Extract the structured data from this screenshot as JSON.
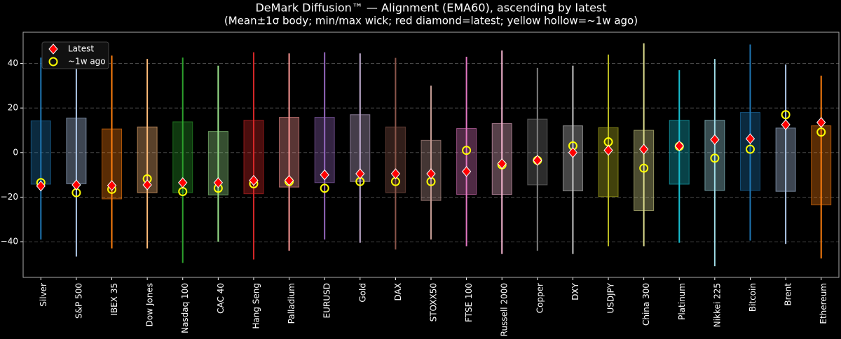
{
  "chart_data": {
    "type": "range",
    "title": "DeMark Diffusion™ — Alignment (EMA60), ascending by latest",
    "subtitle": "(Mean±1σ body; min/max wick; red diamond=latest; yellow hollow=~1w ago)",
    "categories": [
      "Silver",
      "S&P 500",
      "IBEX 35",
      "Dow Jones",
      "Nasdaq 100",
      "CAC 40",
      "Hang Seng",
      "Palladium",
      "EURUSD",
      "Gold",
      "DAX",
      "STOXX50",
      "FTSE 100",
      "Russell 2000",
      "Copper",
      "DXY",
      "USDJPY",
      "China 300",
      "Platinum",
      "Nikkei 225",
      "Bitcoin",
      "Brent",
      "Ethereum"
    ],
    "colors": [
      "#1f77b4",
      "#aec7e8",
      "#ff7f0e",
      "#ffbb78",
      "#2ca02c",
      "#98df8a",
      "#d62728",
      "#ff9896",
      "#9467bd",
      "#c5b0d5",
      "#8c564b",
      "#c49c94",
      "#e377c2",
      "#f7b6d2",
      "#7f7f7f",
      "#c7c7c7",
      "#bcbd22",
      "#dbdb8d",
      "#17becf",
      "#9edae5",
      "#1f77b4",
      "#aec7e8",
      "#ff7f0e"
    ],
    "body_high": [
      14.2,
      15.5,
      10.6,
      11.5,
      13.8,
      9.5,
      14.5,
      15.8,
      15.8,
      17,
      11.5,
      5.5,
      10.8,
      13,
      15,
      12,
      11.2,
      10,
      14.5,
      14.5,
      18,
      11,
      12
    ],
    "body_low": [
      -14.2,
      -14,
      -20.8,
      -18,
      -18,
      -19,
      -18.5,
      -15.5,
      -13.5,
      -13,
      -18,
      -21.5,
      -18.8,
      -18.8,
      -14.5,
      -17.2,
      -19.8,
      -26,
      -14.2,
      -17,
      -17,
      -17.4,
      -23.5
    ],
    "wick_max": [
      42.6,
      44,
      43.5,
      42,
      42.6,
      39,
      45,
      44.5,
      45,
      44.5,
      42.5,
      30,
      43,
      45.8,
      38,
      39,
      44,
      49,
      37,
      42,
      48.5,
      39.5,
      34.5
    ],
    "wick_min": [
      -39,
      -46.7,
      -43,
      -43,
      -49.5,
      -40,
      -48,
      -44,
      -39,
      -40.5,
      -43.5,
      -39,
      -42,
      -45.5,
      -44,
      -45.5,
      -42,
      -42,
      -40.5,
      -51,
      -39.5,
      -41,
      -47.5
    ],
    "series": [
      {
        "name": "Latest",
        "color": "#ff0000",
        "marker": "diamond",
        "values": [
          -15,
          -14.5,
          -14.8,
          -14.5,
          -13.5,
          -13.5,
          -12.5,
          -12.5,
          -10,
          -9.5,
          -9.5,
          -9.5,
          -8.5,
          -5,
          -3.5,
          0,
          1,
          1.5,
          3,
          5.8,
          6.2,
          12.5,
          13.5
        ]
      },
      {
        "name": "~1w ago",
        "color": "#ffff00",
        "marker": "circle",
        "values": [
          -13.5,
          -18,
          -16.5,
          -11.8,
          -17.5,
          -16,
          -14,
          -13,
          -16,
          -13,
          -13,
          -13,
          1,
          -5.5,
          -3.5,
          3,
          4.8,
          -7,
          2.8,
          -2.5,
          1.5,
          17,
          9.2
        ]
      }
    ],
    "ylim": [
      -56,
      54
    ],
    "yticks": [
      {
        "value": -40,
        "label": "−40"
      },
      {
        "value": -20,
        "label": "−20"
      },
      0,
      20,
      40
    ],
    "grid": true,
    "legend": "upper left"
  }
}
